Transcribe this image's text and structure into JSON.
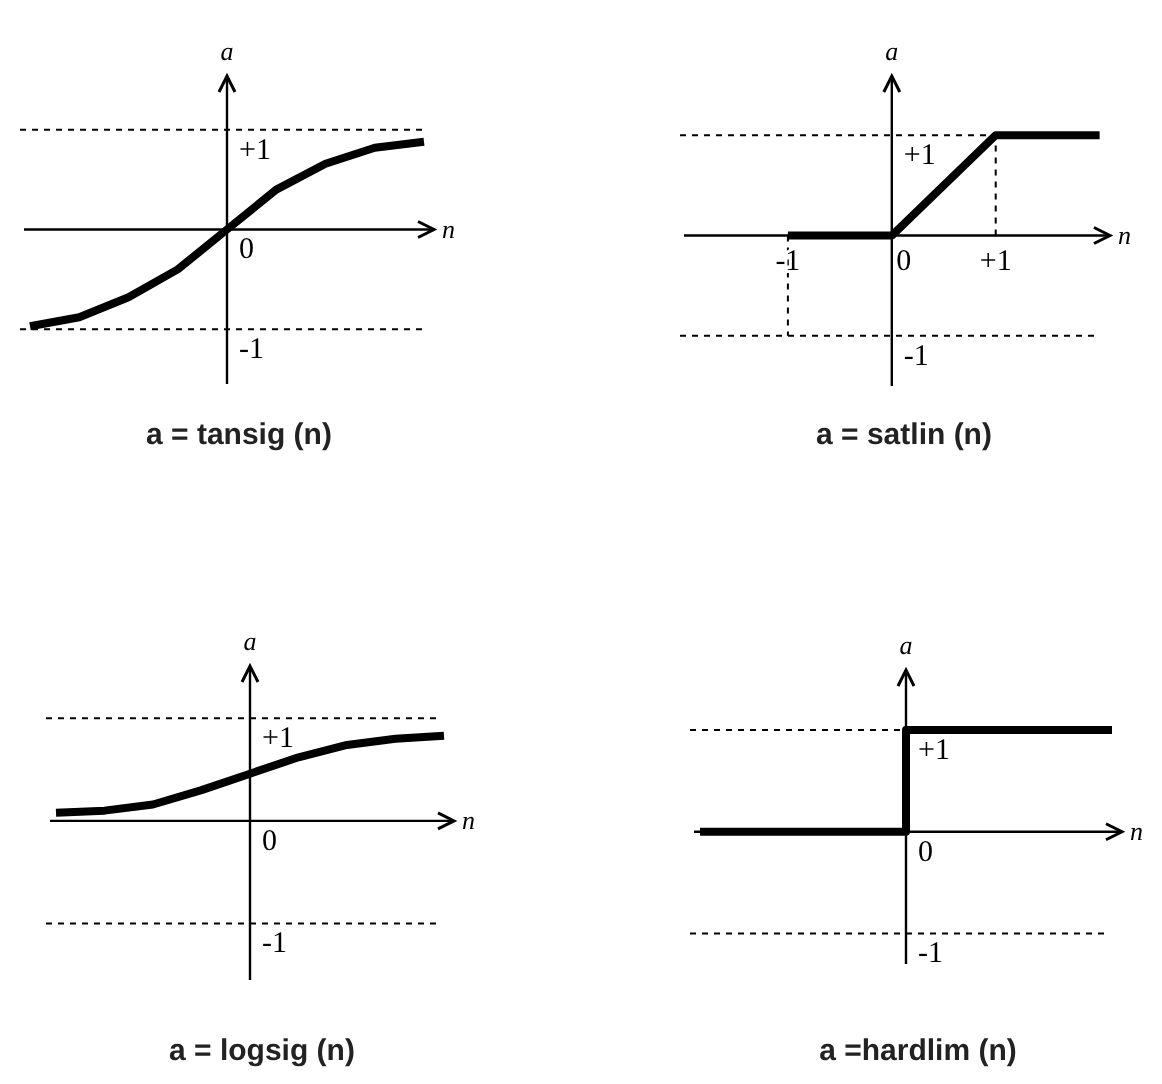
{
  "chart_data": [
    {
      "type": "line",
      "title": "a = tansig (n)",
      "xlabel": "n",
      "ylabel": "a",
      "categories": [
        null,
        null,
        null,
        null,
        null,
        null,
        null,
        null,
        null
      ],
      "values": [
        -0.97,
        -0.88,
        -0.68,
        -0.4,
        0,
        0.4,
        0.66,
        0.82,
        0.88
      ],
      "color": "#000000",
      "ylim": [
        -1.55,
        1.5
      ],
      "yticks": [
        {
          "value": 1,
          "label": "+1"
        },
        {
          "value": 0,
          "label": "0"
        },
        {
          "value": -1,
          "label": "-1"
        }
      ],
      "ref_lines": [
        {
          "axis": "y",
          "value": 1,
          "line_style": "dashed"
        },
        {
          "axis": "y",
          "value": -1,
          "line_style": "dashed"
        }
      ]
    },
    {
      "type": "line",
      "title": "a = satlin (n)",
      "xlabel": "n",
      "ylabel": "a",
      "x": [
        -1,
        0,
        1,
        2
      ],
      "values": [
        0,
        0,
        1,
        1
      ],
      "color": "#000000",
      "xlim": [
        -2,
        2.1
      ],
      "xticks": [
        {
          "value": -1,
          "label": "-1"
        },
        {
          "value": 0,
          "label": "0"
        },
        {
          "value": 1,
          "label": "+1"
        }
      ],
      "ylim": [
        -1.5,
        1.55
      ],
      "yticks": [
        {
          "value": 1,
          "label": "+1"
        },
        {
          "value": -1,
          "label": "-1"
        }
      ],
      "ref_lines": [
        {
          "axis": "y",
          "value": 1,
          "line_style": "dashed"
        },
        {
          "axis": "y",
          "value": -1,
          "line_style": "dashed"
        },
        {
          "axis": "x",
          "value": -1,
          "line_style": "dashed"
        },
        {
          "axis": "x",
          "value": 1,
          "line_style": "dashed"
        }
      ]
    },
    {
      "type": "line",
      "title": "a = logsig (n)",
      "xlabel": "n",
      "ylabel": "a",
      "categories": [
        null,
        null,
        null,
        null,
        null,
        null,
        null,
        null,
        null
      ],
      "values": [
        0.08,
        0.1,
        0.16,
        0.3,
        0.46,
        0.62,
        0.74,
        0.8,
        0.83
      ],
      "color": "#000000",
      "ylim": [
        -1.55,
        1.47
      ],
      "yticks": [
        {
          "value": 1,
          "label": "+1"
        },
        {
          "value": 0,
          "label": "0"
        },
        {
          "value": -1,
          "label": "-1"
        }
      ],
      "ref_lines": [
        {
          "axis": "y",
          "value": 1,
          "line_style": "dashed"
        },
        {
          "axis": "y",
          "value": -1,
          "line_style": "dashed"
        }
      ]
    },
    {
      "type": "step",
      "title": "a =hardlim (n)",
      "xlabel": "n",
      "ylabel": "a",
      "categories": [
        null,
        null,
        null,
        null,
        null
      ],
      "values": [
        0,
        0,
        1,
        1,
        1
      ],
      "color": "#000000",
      "ylim": [
        -1.3,
        1.55
      ],
      "yticks": [
        {
          "value": 1,
          "label": "+1"
        },
        {
          "value": 0,
          "label": "0"
        },
        {
          "value": -1,
          "label": "-1"
        }
      ],
      "ref_lines": [
        {
          "axis": "y",
          "value": 1,
          "line_style": "dashed"
        },
        {
          "axis": "y",
          "value": -1,
          "line_style": "dashed"
        }
      ]
    }
  ]
}
